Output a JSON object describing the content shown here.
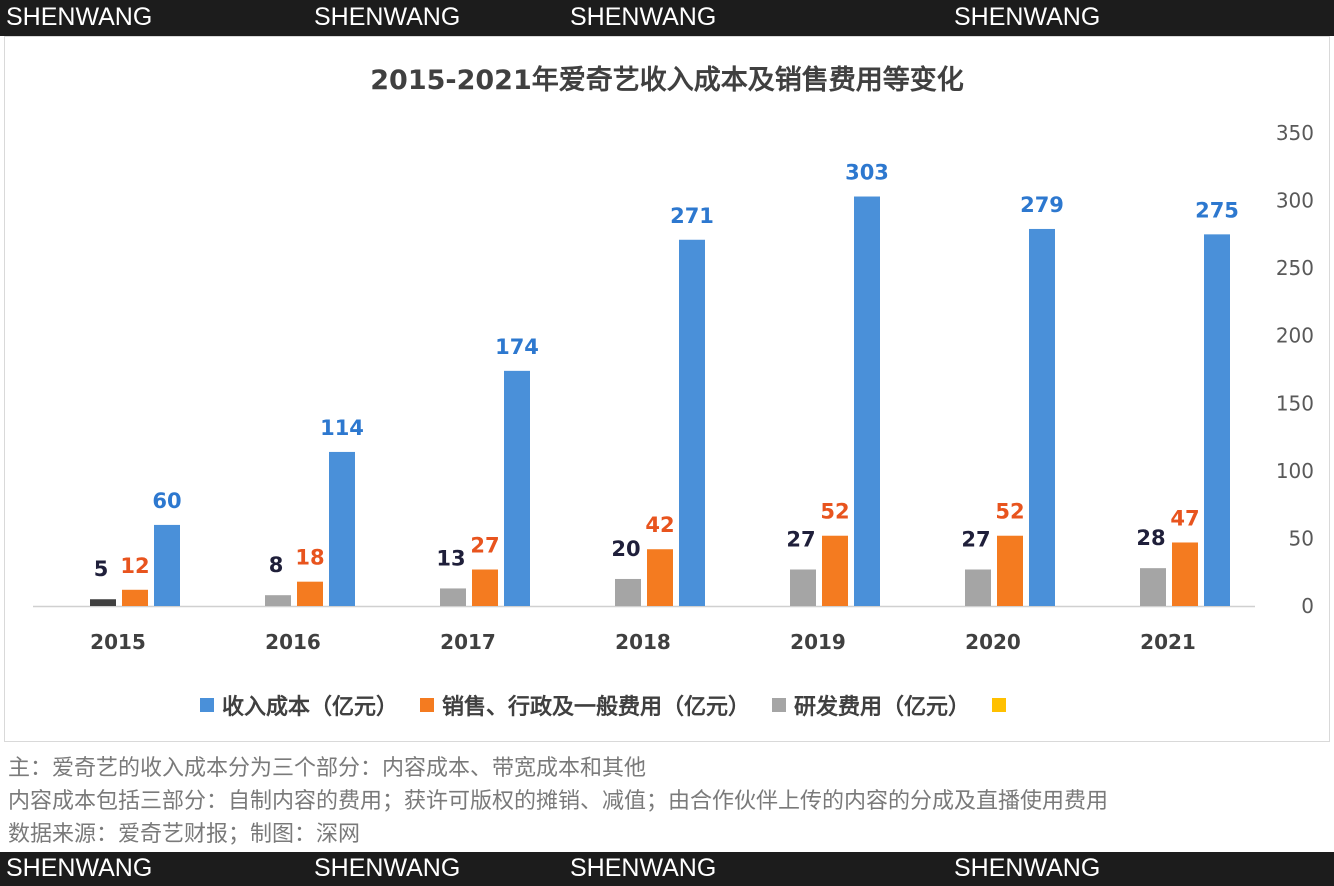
{
  "watermark": "SHENWANG",
  "chart_data": {
    "type": "bar",
    "title": "2015-2021年爱奇艺收入成本及销售费用等变化",
    "categories": [
      "2015",
      "2016",
      "2017",
      "2018",
      "2019",
      "2020",
      "2021"
    ],
    "series": [
      {
        "name": "研发费用（亿元）",
        "color": "#a5a5a5",
        "label_color": "#1f1f3a",
        "values": [
          5,
          8,
          13,
          20,
          27,
          27,
          28
        ]
      },
      {
        "name": "销售、行政及一般费用（亿元）",
        "color": "#f47b20",
        "label_color": "#e8541e",
        "values": [
          12,
          18,
          27,
          42,
          52,
          52,
          47
        ]
      },
      {
        "name": "收入成本（亿元）",
        "color": "#4a90d9",
        "label_color": "#2d78cf",
        "values": [
          60,
          114,
          174,
          271,
          303,
          279,
          275
        ]
      }
    ],
    "legend_order": [
      {
        "name": "收入成本（亿元）",
        "color": "#4a90d9"
      },
      {
        "name": "销售、行政及一般费用（亿元）",
        "color": "#f47b20"
      },
      {
        "name": "研发费用（亿元）",
        "color": "#a5a5a5"
      },
      {
        "name": "",
        "color": "#ffc000"
      }
    ],
    "y_axis": {
      "position": "right",
      "ylim": [
        0,
        350
      ],
      "ticks": [
        0,
        50,
        100,
        150,
        200,
        250,
        300,
        350
      ]
    },
    "grid": false,
    "legend_placement": "bottom"
  },
  "notes": [
    "主：爱奇艺的收入成本分为三个部分：内容成本、带宽成本和其他",
    "内容成本包括三部分：自制内容的费用；获许可版权的摊销、减值；由合作伙伴上传的内容的分成及直播使用费用",
    "数据来源：爱奇艺财报；制图：深网"
  ]
}
